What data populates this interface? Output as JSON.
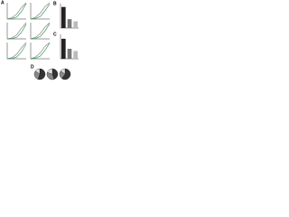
{
  "chart_data": [
    {
      "type": "line",
      "panel": "A",
      "x": [
        0,
        1,
        2,
        3,
        4
      ],
      "xlim": [
        0,
        4
      ],
      "ylim": [
        0,
        100
      ],
      "series": [
        {
          "color": "#888888",
          "values": [
            0,
            8,
            30,
            70,
            100
          ]
        },
        {
          "color": "#3a9a5a",
          "values": [
            0,
            3,
            12,
            45,
            95
          ]
        }
      ]
    },
    {
      "type": "line",
      "x": [
        0,
        1,
        2,
        3,
        4
      ],
      "xlim": [
        0,
        4
      ],
      "ylim": [
        0,
        100
      ],
      "series": [
        {
          "color": "#888888",
          "values": [
            0,
            10,
            35,
            75,
            100
          ]
        },
        {
          "color": "#3a9a5a",
          "values": [
            0,
            4,
            15,
            50,
            92
          ]
        }
      ]
    },
    {
      "type": "line",
      "x": [
        0,
        1,
        2,
        3,
        4
      ],
      "xlim": [
        0,
        4
      ],
      "ylim": [
        0,
        100
      ],
      "series": [
        {
          "color": "#888888",
          "values": [
            0,
            6,
            25,
            65,
            100
          ]
        },
        {
          "color": "#3a9a5a",
          "values": [
            0,
            2,
            10,
            40,
            90
          ]
        }
      ]
    },
    {
      "type": "line",
      "x": [
        0,
        1,
        2,
        3,
        4
      ],
      "xlim": [
        0,
        4
      ],
      "ylim": [
        0,
        100
      ],
      "series": [
        {
          "color": "#888888",
          "values": [
            0,
            9,
            32,
            72,
            100
          ]
        },
        {
          "color": "#3a9a5a",
          "values": [
            0,
            3,
            14,
            48,
            94
          ]
        }
      ]
    },
    {
      "type": "line",
      "x": [
        0,
        1,
        2,
        3,
        4
      ],
      "xlim": [
        0,
        4
      ],
      "ylim": [
        0,
        100
      ],
      "series": [
        {
          "color": "#888888",
          "values": [
            0,
            7,
            28,
            68,
            100
          ]
        },
        {
          "color": "#3a9a5a",
          "values": [
            0,
            2,
            11,
            42,
            91
          ]
        }
      ]
    },
    {
      "type": "line",
      "x": [
        0,
        1,
        2,
        3,
        4
      ],
      "xlim": [
        0,
        4
      ],
      "ylim": [
        0,
        100
      ],
      "series": [
        {
          "color": "#888888",
          "values": [
            0,
            11,
            36,
            76,
            100
          ]
        },
        {
          "color": "#3a9a5a",
          "values": [
            0,
            4,
            16,
            52,
            96
          ]
        }
      ]
    },
    {
      "type": "bar",
      "panel": "B",
      "values": [
        95,
        40,
        30
      ],
      "colors": [
        "#222222",
        "#777777",
        "#bbbbbb"
      ],
      "ylim": [
        0,
        110
      ]
    },
    {
      "type": "bar",
      "panel": "C",
      "values": [
        90,
        45,
        35
      ],
      "colors": [
        "#222222",
        "#777777",
        "#bbbbbb"
      ],
      "ylim": [
        0,
        110
      ]
    },
    {
      "type": "pie",
      "panel": "D",
      "values": [
        55,
        30,
        15
      ],
      "colors": [
        "#333333",
        "#888888",
        "#dddddd"
      ]
    },
    {
      "type": "pie",
      "values": [
        45,
        35,
        20
      ],
      "colors": [
        "#333333",
        "#888888",
        "#dddddd"
      ]
    },
    {
      "type": "pie",
      "values": [
        60,
        25,
        15
      ],
      "colors": [
        "#333333",
        "#888888",
        "#dddddd"
      ]
    }
  ]
}
